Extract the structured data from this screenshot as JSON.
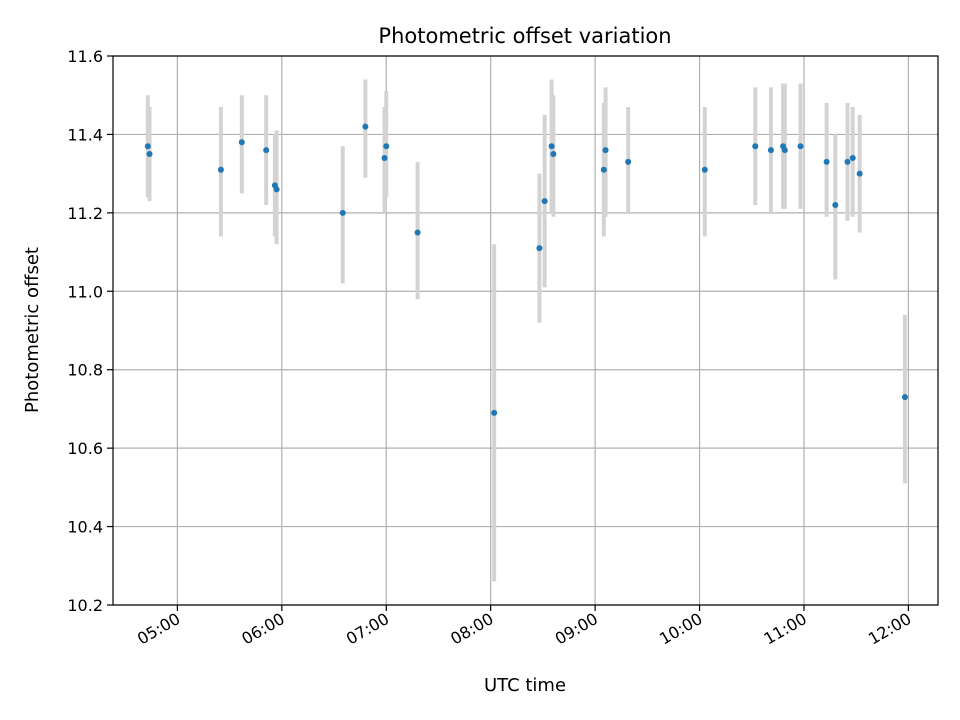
{
  "chart_data": {
    "type": "scatter",
    "title": "Photometric offset variation",
    "xlabel": "UTC time",
    "ylabel": "Photometric offset",
    "ylim": [
      10.2,
      11.6
    ],
    "xlim": [
      "04:23",
      "12:17"
    ],
    "x_ticks": [
      "05:00",
      "06:00",
      "07:00",
      "08:00",
      "09:00",
      "10:00",
      "11:00",
      "12:00"
    ],
    "y_ticks": [
      "10.2",
      "10.4",
      "10.6",
      "10.8",
      "11.0",
      "11.2",
      "11.4",
      "11.6"
    ],
    "grid": true,
    "colors": {
      "point": "#1f77b4",
      "errorbar": "#d3d3d3",
      "grid": "#b0b0b0"
    },
    "series": [
      {
        "points": [
          {
            "x": "04:43",
            "y": 11.37,
            "ylo": 11.24,
            "yhi": 11.5
          },
          {
            "x": "04:44",
            "y": 11.35,
            "ylo": 11.23,
            "yhi": 11.47
          },
          {
            "x": "05:25",
            "y": 11.31,
            "ylo": 11.14,
            "yhi": 11.47
          },
          {
            "x": "05:37",
            "y": 11.38,
            "ylo": 11.25,
            "yhi": 11.5
          },
          {
            "x": "05:51",
            "y": 11.36,
            "ylo": 11.22,
            "yhi": 11.5
          },
          {
            "x": "05:56",
            "y": 11.27,
            "ylo": 11.14,
            "yhi": 11.4
          },
          {
            "x": "05:57",
            "y": 11.26,
            "ylo": 11.12,
            "yhi": 11.41
          },
          {
            "x": "06:35",
            "y": 11.2,
            "ylo": 11.02,
            "yhi": 11.37
          },
          {
            "x": "06:48",
            "y": 11.42,
            "ylo": 11.29,
            "yhi": 11.54
          },
          {
            "x": "06:59",
            "y": 11.34,
            "ylo": 11.2,
            "yhi": 11.47
          },
          {
            "x": "07:00",
            "y": 11.37,
            "ylo": 11.24,
            "yhi": 11.51
          },
          {
            "x": "07:18",
            "y": 11.15,
            "ylo": 10.98,
            "yhi": 11.33
          },
          {
            "x": "08:02",
            "y": 10.69,
            "ylo": 10.26,
            "yhi": 11.12
          },
          {
            "x": "08:28",
            "y": 11.11,
            "ylo": 10.92,
            "yhi": 11.3
          },
          {
            "x": "08:31",
            "y": 11.23,
            "ylo": 11.01,
            "yhi": 11.45
          },
          {
            "x": "08:35",
            "y": 11.37,
            "ylo": 11.2,
            "yhi": 11.54
          },
          {
            "x": "08:36",
            "y": 11.35,
            "ylo": 11.19,
            "yhi": 11.5
          },
          {
            "x": "09:05",
            "y": 11.31,
            "ylo": 11.14,
            "yhi": 11.48
          },
          {
            "x": "09:06",
            "y": 11.36,
            "ylo": 11.19,
            "yhi": 11.52
          },
          {
            "x": "09:19",
            "y": 11.33,
            "ylo": 11.2,
            "yhi": 11.47
          },
          {
            "x": "10:03",
            "y": 11.31,
            "ylo": 11.14,
            "yhi": 11.47
          },
          {
            "x": "10:32",
            "y": 11.37,
            "ylo": 11.22,
            "yhi": 11.52
          },
          {
            "x": "10:41",
            "y": 11.36,
            "ylo": 11.2,
            "yhi": 11.52
          },
          {
            "x": "10:48",
            "y": 11.37,
            "ylo": 11.21,
            "yhi": 11.53
          },
          {
            "x": "10:49",
            "y": 11.36,
            "ylo": 11.21,
            "yhi": 11.53
          },
          {
            "x": "10:58",
            "y": 11.37,
            "ylo": 11.21,
            "yhi": 11.53
          },
          {
            "x": "11:13",
            "y": 11.33,
            "ylo": 11.19,
            "yhi": 11.48
          },
          {
            "x": "11:18",
            "y": 11.22,
            "ylo": 11.03,
            "yhi": 11.4
          },
          {
            "x": "11:25",
            "y": 11.33,
            "ylo": 11.18,
            "yhi": 11.48
          },
          {
            "x": "11:28",
            "y": 11.34,
            "ylo": 11.19,
            "yhi": 11.47
          },
          {
            "x": "11:32",
            "y": 11.3,
            "ylo": 11.15,
            "yhi": 11.45
          },
          {
            "x": "11:58",
            "y": 10.73,
            "ylo": 10.51,
            "yhi": 10.94
          }
        ]
      }
    ]
  }
}
